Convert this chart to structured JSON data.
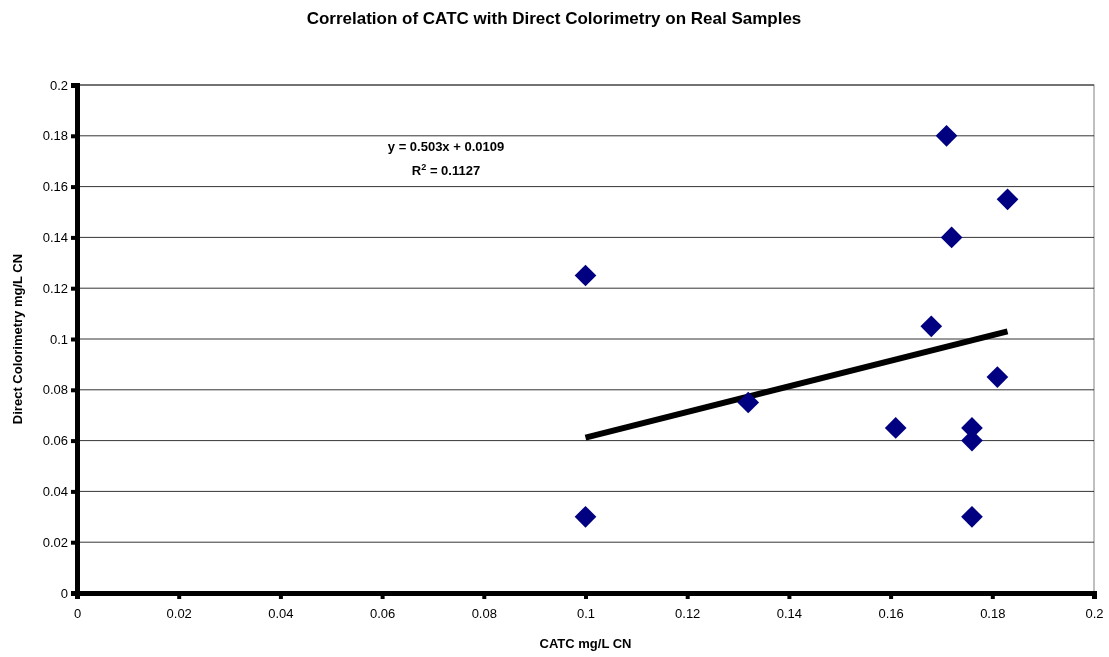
{
  "chart_data": {
    "type": "scatter",
    "title": "Correlation of CATC with Direct Colorimetry on Real Samples",
    "xlabel": "CATC mg/L CN",
    "ylabel": "Direct Colorimetry mg/L CN",
    "annotations": [
      "y = 0.503x + 0.0109",
      "R$^{2}$ = 0.1127"
    ],
    "xlim": [
      0,
      0.2
    ],
    "xticks": [
      0,
      0.02,
      0.04,
      0.06,
      0.08,
      0.1,
      0.12,
      0.14,
      0.16,
      0.18,
      0.2
    ],
    "ylim": [
      0,
      0.2
    ],
    "yticks": [
      0,
      0.02,
      0.04,
      0.06,
      0.08,
      0.1,
      0.12,
      0.14,
      0.16,
      0.18,
      0.2
    ],
    "grid": "y",
    "series": [
      {
        "marker": "diamond",
        "color": "#000080",
        "x": [
          0.1,
          0.1,
          0.132,
          0.161,
          0.168,
          0.171,
          0.172,
          0.176,
          0.176,
          0.176,
          0.181,
          0.183
        ],
        "values": [
          0.03,
          0.125,
          0.075,
          0.065,
          0.105,
          0.18,
          0.14,
          0.065,
          0.06,
          0.03,
          0.085,
          0.155
        ]
      },
      {
        "type": "line",
        "color": "#000000",
        "x": [
          0.1,
          0.183
        ],
        "values": [
          0.0612,
          0.103
        ]
      }
    ]
  }
}
